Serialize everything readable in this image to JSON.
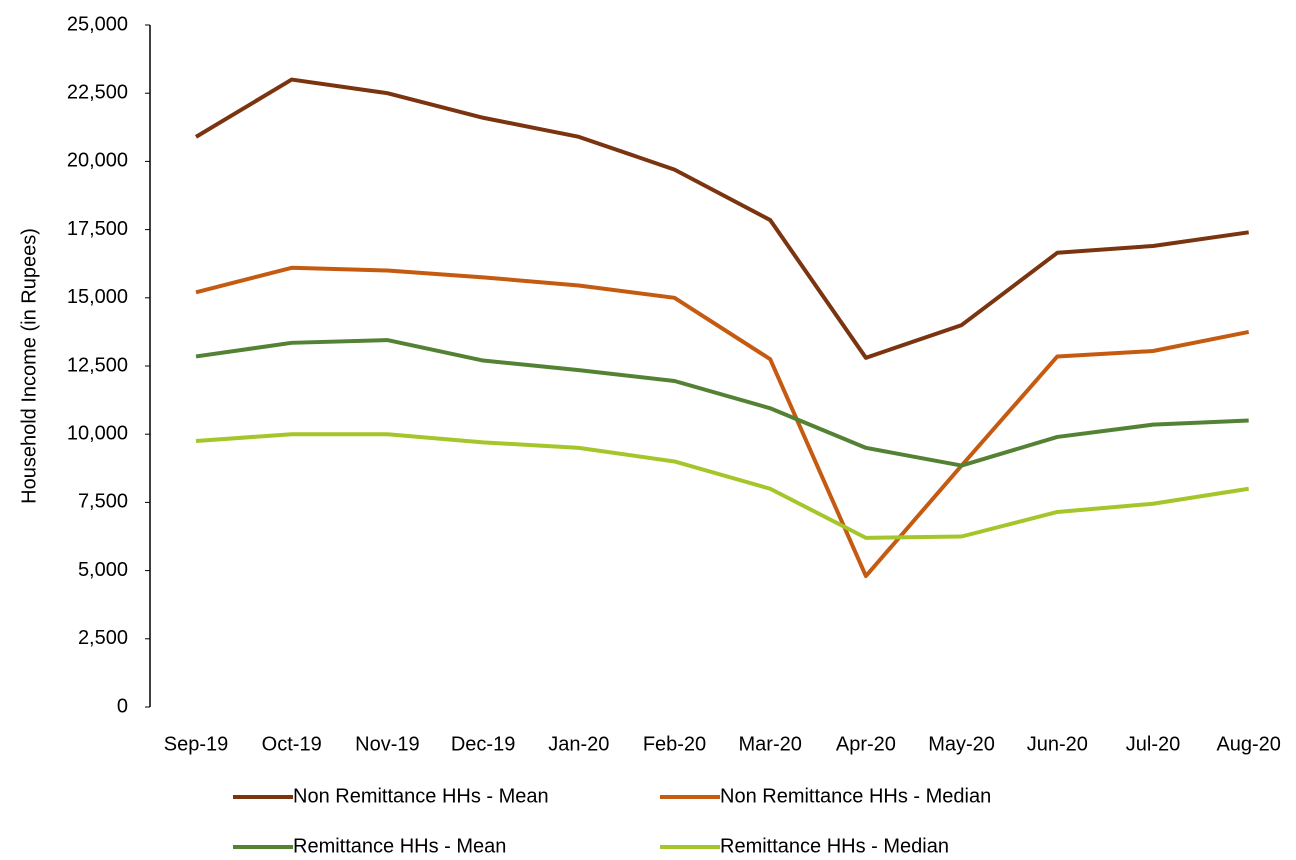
{
  "chart_data": {
    "type": "line",
    "y_label": "Household Income (in Rupees)",
    "categories": [
      "Sep-19",
      "Oct-19",
      "Nov-19",
      "Dec-19",
      "Jan-20",
      "Feb-20",
      "Mar-20",
      "Apr-20",
      "May-20",
      "Jun-20",
      "Jul-20",
      "Aug-20"
    ],
    "ylim": [
      0,
      25000
    ],
    "yticks": [
      0,
      {
        "value": 2500,
        "label": "2,500"
      },
      {
        "value": 5000,
        "label": "5,000"
      },
      {
        "value": 7500,
        "label": "7,500"
      },
      {
        "value": 10000,
        "label": "10,000"
      },
      {
        "value": 12500,
        "label": "12,500"
      },
      {
        "value": 15000,
        "label": "15,000"
      },
      {
        "value": 17500,
        "label": "17,500"
      },
      {
        "value": 20000,
        "label": "20,000"
      },
      {
        "value": 22500,
        "label": "22,500"
      },
      {
        "value": 25000,
        "label": "25,000"
      }
    ],
    "grid": false,
    "series": [
      {
        "name": "Non Remittance HHs - Mean",
        "color": "#7b3410",
        "values": [
          20900,
          23000,
          22500,
          21600,
          20900,
          19700,
          17850,
          12800,
          14000,
          16650,
          16900,
          17400
        ]
      },
      {
        "name": "Non Remittance HHs - Median",
        "color": "#c55a11",
        "values": [
          15200,
          16100,
          16000,
          15750,
          15450,
          15000,
          12750,
          4800,
          8850,
          12850,
          13050,
          13750
        ]
      },
      {
        "name": "Remittance HHs - Mean",
        "color": "#548235",
        "values": [
          12850,
          13350,
          13450,
          12700,
          12350,
          11950,
          10950,
          9500,
          8850,
          9900,
          10350,
          10500
        ]
      },
      {
        "name": "Remittance HHs - Median",
        "color": "#a5c62a",
        "values": [
          9750,
          10000,
          10000,
          9700,
          9500,
          9000,
          8000,
          6200,
          6250,
          7150,
          7450,
          8000
        ]
      }
    ]
  }
}
